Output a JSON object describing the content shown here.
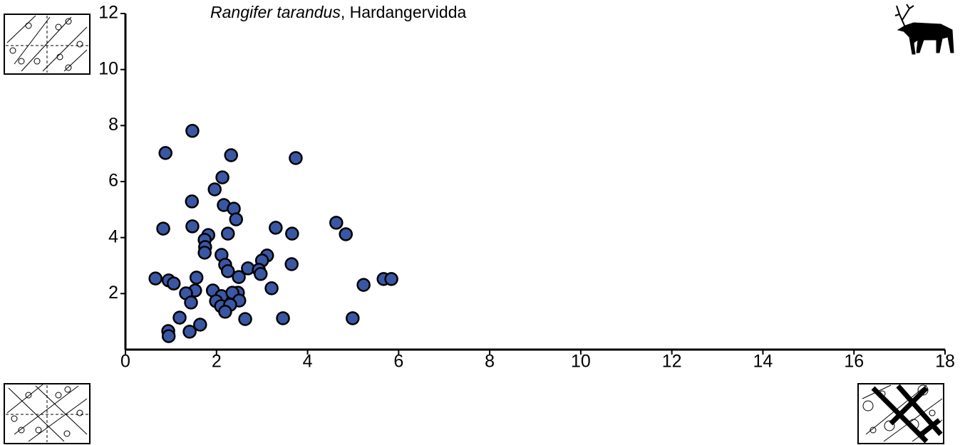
{
  "chart_data": {
    "type": "scatter",
    "title": [
      "Rangifer tarandus",
      ", Hardangervidda"
    ],
    "x": [
      1.47,
      0.88,
      2.32,
      3.74,
      2.13,
      1.96,
      1.46,
      2.16,
      2.38,
      2.43,
      0.83,
      1.47,
      1.82,
      2.25,
      3.3,
      3.66,
      4.63,
      4.84,
      1.74,
      1.75,
      1.74,
      2.11,
      3.11,
      2.19,
      3.0,
      2.25,
      2.69,
      3.65,
      2.93,
      2.97,
      2.49,
      1.56,
      0.66,
      0.95,
      1.06,
      5.67,
      5.84,
      5.23,
      3.21,
      1.53,
      1.33,
      1.92,
      2.47,
      2.11,
      2.35,
      1.44,
      1.99,
      2.5,
      2.1,
      2.3,
      2.19,
      1.19,
      2.63,
      3.46,
      4.99,
      1.64,
      0.94,
      1.41,
      0.95
    ],
    "values": [
      7.81,
      7.02,
      6.94,
      6.84,
      6.15,
      5.72,
      5.29,
      5.16,
      5.03,
      4.65,
      4.32,
      4.4,
      4.09,
      4.14,
      4.35,
      4.14,
      4.53,
      4.12,
      3.92,
      3.66,
      3.46,
      3.38,
      3.36,
      3.03,
      3.18,
      2.8,
      2.9,
      3.05,
      2.85,
      2.7,
      2.59,
      2.57,
      2.54,
      2.47,
      2.36,
      2.52,
      2.52,
      2.31,
      2.19,
      2.11,
      2.01,
      2.11,
      2.03,
      1.91,
      2.03,
      1.68,
      1.73,
      1.75,
      1.55,
      1.6,
      1.35,
      1.14,
      1.09,
      1.12,
      1.12,
      0.89,
      0.66,
      0.64,
      0.48
    ],
    "color": "#3a57a4",
    "xlim": [
      0,
      18
    ],
    "xticks": [
      0,
      2,
      4,
      6,
      8,
      10,
      12,
      14,
      16,
      18
    ],
    "ylim": [
      0,
      12
    ],
    "yticks": [
      2,
      4,
      6,
      8,
      10,
      12
    ]
  }
}
